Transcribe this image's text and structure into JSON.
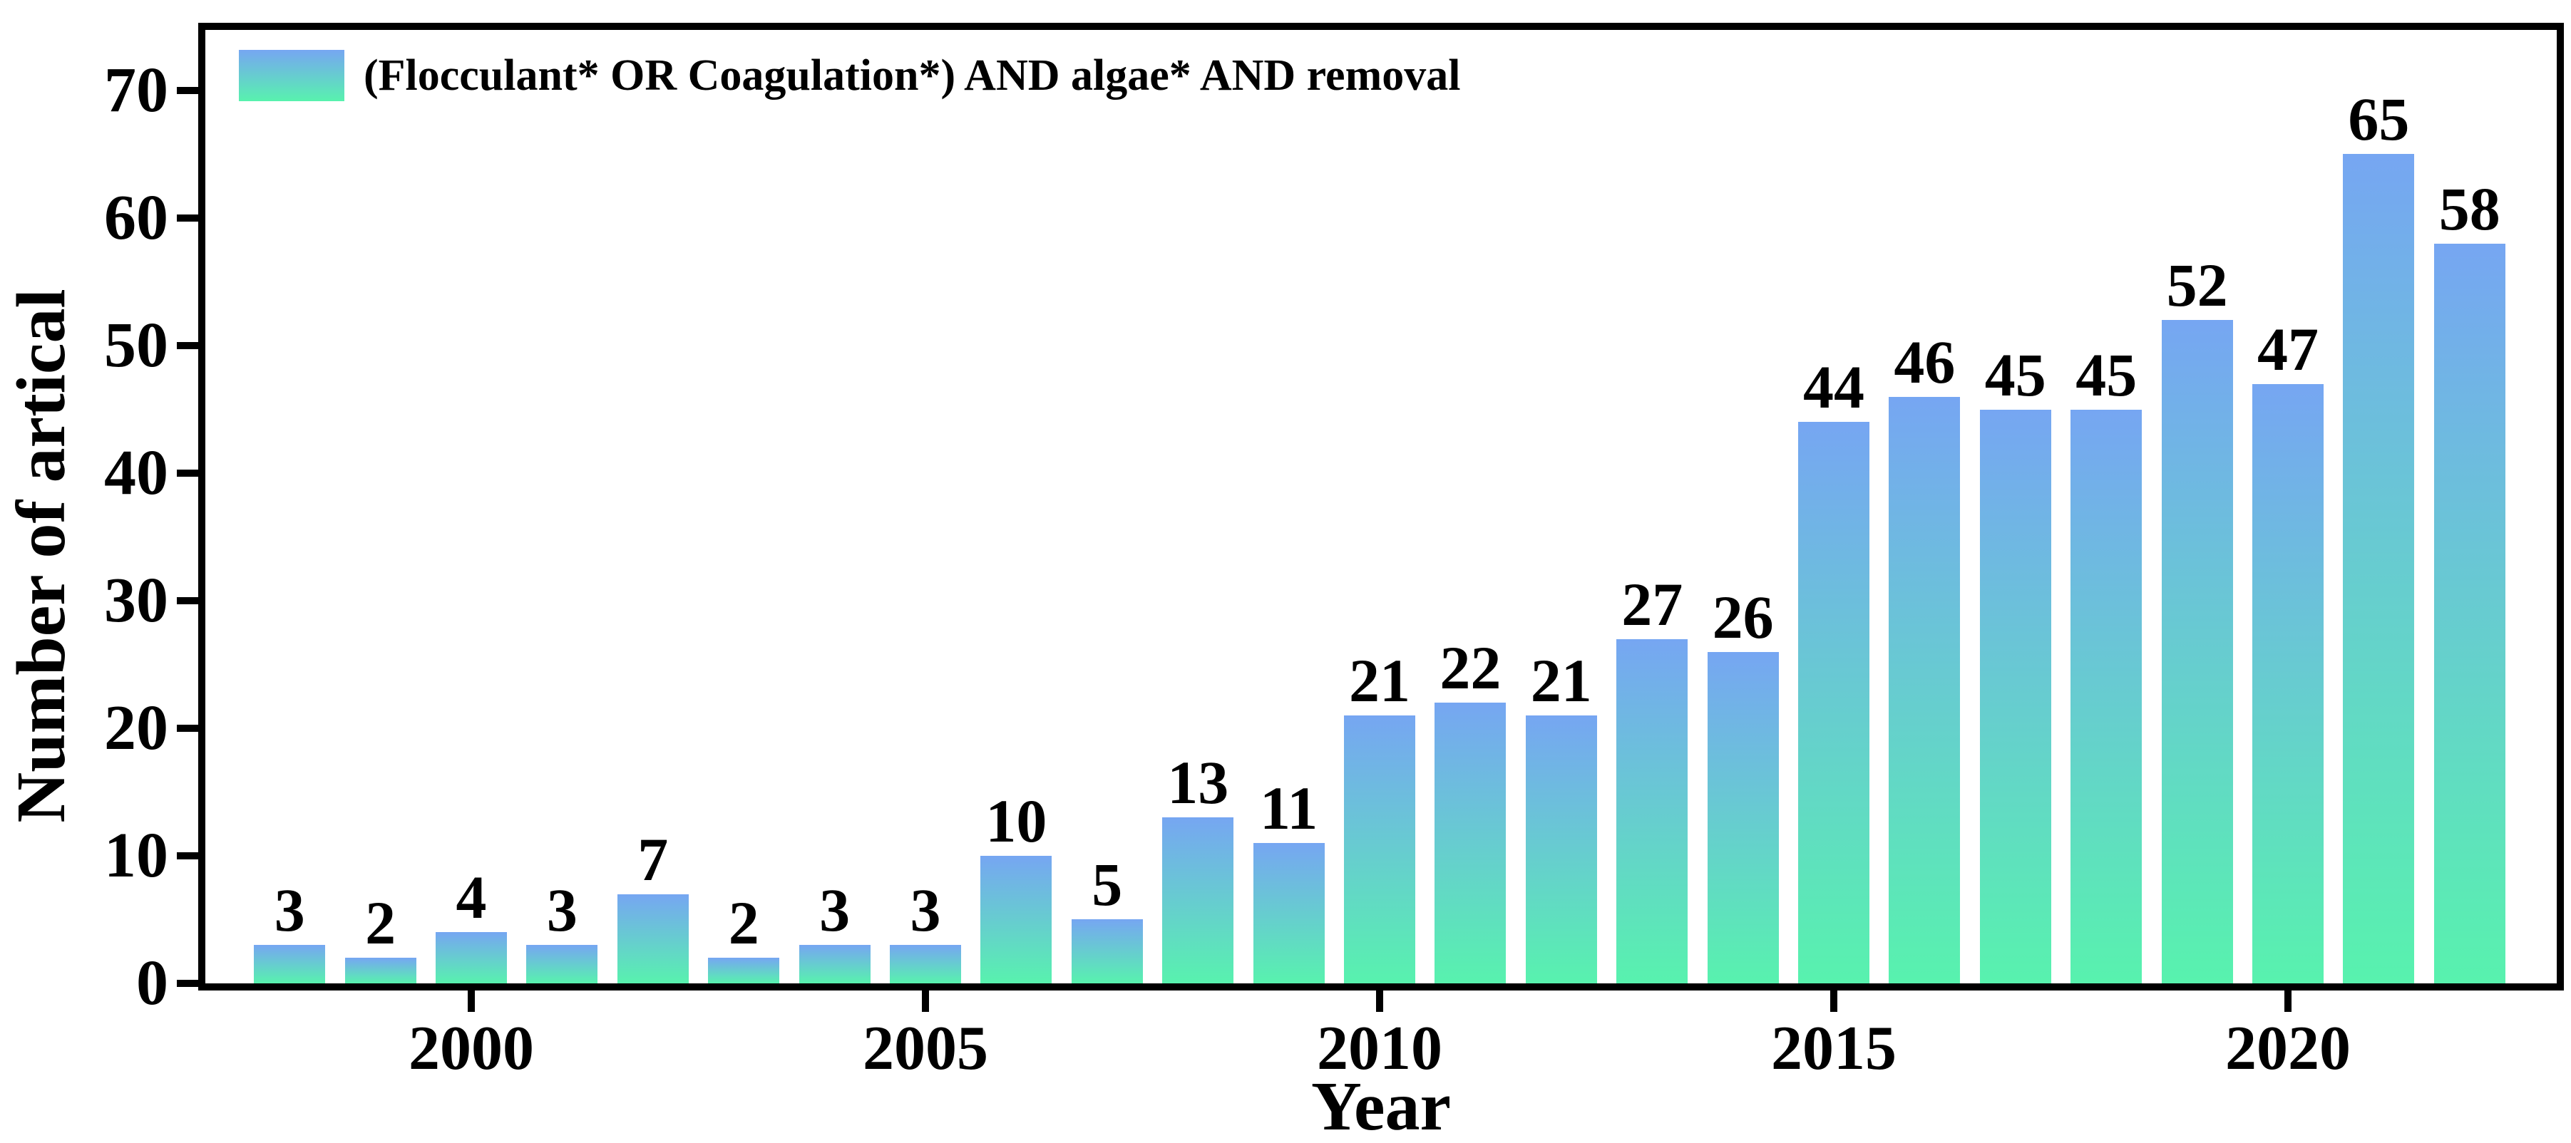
{
  "chart_data": {
    "type": "bar",
    "title": "",
    "legend_label": "(Flocculant* OR Coagulation*) AND algae* AND removal",
    "xlabel": "Year",
    "ylabel": "Number of artical",
    "categories": [
      1998,
      1999,
      2000,
      2001,
      2002,
      2003,
      2004,
      2005,
      2006,
      2007,
      2008,
      2009,
      2010,
      2011,
      2012,
      2013,
      2014,
      2015,
      2016,
      2017,
      2018,
      2019,
      2020,
      2021,
      2022
    ],
    "values": [
      3,
      2,
      4,
      3,
      7,
      2,
      3,
      3,
      10,
      5,
      13,
      11,
      21,
      22,
      21,
      27,
      26,
      44,
      46,
      45,
      45,
      52,
      47,
      65,
      58
    ],
    "bar_labels": [
      "3",
      "2",
      "4",
      "3",
      "7",
      "2",
      "3",
      "3",
      "10",
      "5",
      "13",
      "11",
      "21",
      "22",
      "21",
      "27",
      "26",
      "44",
      "46",
      "45",
      "45",
      "52",
      "47",
      "65",
      "58"
    ],
    "ytick_labels": [
      "0",
      "10",
      "20",
      "30",
      "40",
      "50",
      "60",
      "70"
    ],
    "yticks": [
      0,
      10,
      20,
      30,
      40,
      50,
      60,
      70
    ],
    "xtick_labels": [
      "2000",
      "2005",
      "2010",
      "2015",
      "2020"
    ],
    "xticks": [
      2000,
      2005,
      2010,
      2015,
      2020
    ],
    "ylim": [
      0,
      75
    ],
    "grid": false,
    "legend_position": "top-left",
    "colors": {
      "bar_gradient_top": "#76a6f2",
      "bar_gradient_bottom": "#58f2ae",
      "axis": "#000000",
      "text": "#000000",
      "background": "#ffffff"
    }
  }
}
